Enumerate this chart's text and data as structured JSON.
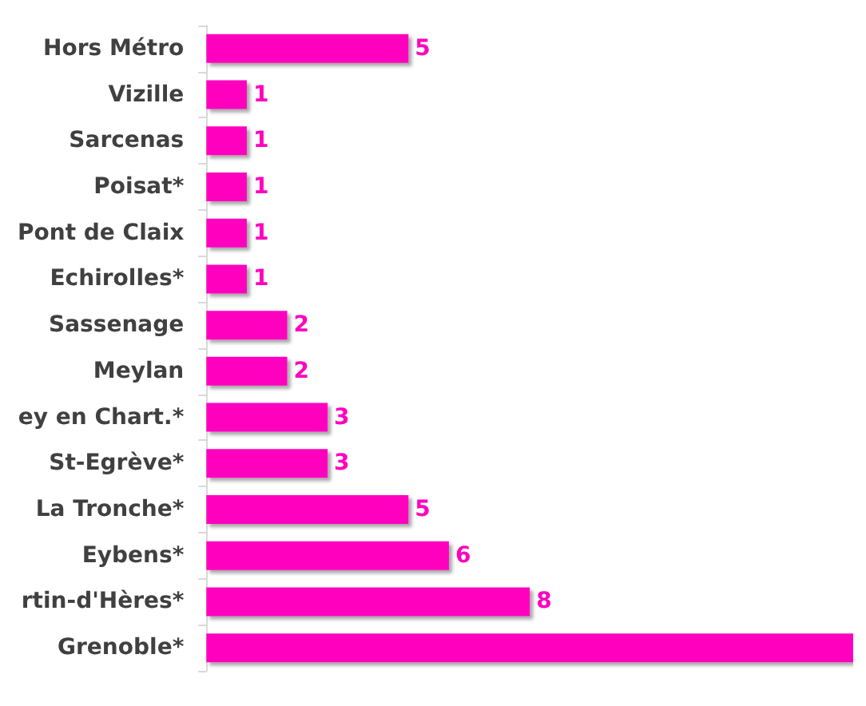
{
  "chart_data": {
    "type": "bar",
    "orientation": "horizontal",
    "color": "#ff00bf",
    "categories": [
      "Hors Métro",
      "Vizille",
      "Sarcenas",
      "Poisat*",
      "Pont de Claix",
      "Echirolles*",
      "Sassenage",
      "Meylan",
      "ey en Chart.*",
      "St-Egrève*",
      "La Tronche*",
      "Eybens*",
      "rtin-d'Hères*",
      "Grenoble*"
    ],
    "values": [
      5,
      1,
      1,
      1,
      1,
      1,
      2,
      2,
      3,
      3,
      5,
      6,
      8,
      16
    ],
    "value_labels": [
      "5",
      "1",
      "1",
      "1",
      "1",
      "1",
      "2",
      "2",
      "3",
      "3",
      "5",
      "6",
      "8",
      null
    ]
  }
}
